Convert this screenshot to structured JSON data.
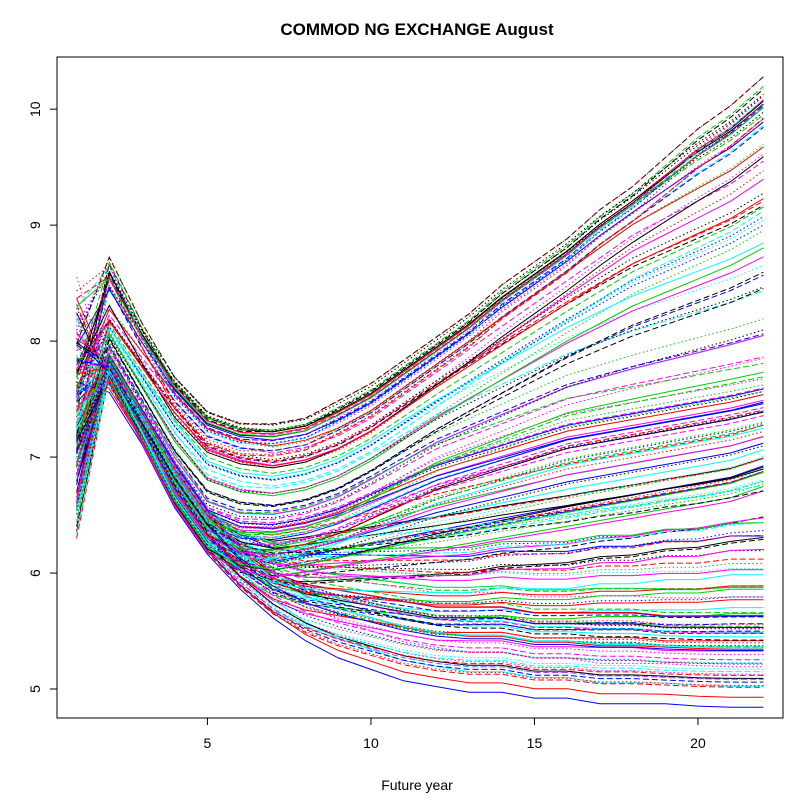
{
  "chart_data": {
    "type": "line",
    "title": "COMMOD NG EXCHANGE August",
    "xlabel": "Future year",
    "ylabel": "",
    "xlim": [
      0.4,
      22.6
    ],
    "ylim": [
      4.75,
      10.45
    ],
    "xticks": [
      "5",
      "10",
      "15",
      "20"
    ],
    "yticks": [
      "5",
      "6",
      "7",
      "8",
      "9",
      "10"
    ],
    "grid": false,
    "legend": "none",
    "x": [
      1,
      2,
      3,
      4,
      5,
      6,
      7,
      8,
      9,
      10,
      11,
      12,
      13,
      14,
      15,
      16,
      17,
      18,
      19,
      20,
      21,
      22
    ],
    "colors": [
      "#000000",
      "#ff0000",
      "#00cd00",
      "#0000ff",
      "#00ffff",
      "#ff00ff"
    ],
    "linetypes": [
      "solid",
      "dashed",
      "dotted"
    ],
    "series_count": 180,
    "representative_curves": [
      {
        "values": [
          7.9,
          8.7,
          8.1,
          7.6,
          7.3,
          7.2,
          7.2,
          7.25,
          7.4,
          7.55,
          7.75,
          7.95,
          8.15,
          8.4,
          8.6,
          8.8,
          9.05,
          9.25,
          9.5,
          9.75,
          9.95,
          10.2
        ]
      },
      {
        "values": [
          7.5,
          8.2,
          7.8,
          7.4,
          7.1,
          7.0,
          6.95,
          7.0,
          7.1,
          7.25,
          7.45,
          7.65,
          7.85,
          8.05,
          8.25,
          8.45,
          8.65,
          8.85,
          9.0,
          9.15,
          9.3,
          9.5
        ]
      },
      {
        "values": [
          7.2,
          7.9,
          7.4,
          6.9,
          6.5,
          6.4,
          6.4,
          6.45,
          6.55,
          6.7,
          6.85,
          7.0,
          7.1,
          7.2,
          7.3,
          7.4,
          7.45,
          7.5,
          7.55,
          7.6,
          7.65,
          7.7
        ]
      },
      {
        "values": [
          6.9,
          7.7,
          7.2,
          6.7,
          6.3,
          6.15,
          6.1,
          6.15,
          6.2,
          6.25,
          6.3,
          6.35,
          6.4,
          6.45,
          6.5,
          6.55,
          6.6,
          6.65,
          6.7,
          6.75,
          6.8,
          6.9
        ]
      },
      {
        "values": [
          7.0,
          7.8,
          7.3,
          6.8,
          6.4,
          6.2,
          6.1,
          6.05,
          6.05,
          6.05,
          6.05,
          6.05,
          6.05,
          6.1,
          6.1,
          6.1,
          6.15,
          6.15,
          6.2,
          6.2,
          6.25,
          6.25
        ]
      },
      {
        "values": [
          7.4,
          7.8,
          7.3,
          6.8,
          6.4,
          6.1,
          5.9,
          5.8,
          5.75,
          5.7,
          5.65,
          5.6,
          5.6,
          5.6,
          5.55,
          5.55,
          5.55,
          5.55,
          5.52,
          5.52,
          5.52,
          5.52
        ]
      },
      {
        "values": [
          8.0,
          7.6,
          7.2,
          6.7,
          6.3,
          6.0,
          5.75,
          5.55,
          5.4,
          5.3,
          5.2,
          5.15,
          5.1,
          5.1,
          5.05,
          5.05,
          5.0,
          5.0,
          5.0,
          4.98,
          4.97,
          4.97
        ]
      }
    ]
  }
}
